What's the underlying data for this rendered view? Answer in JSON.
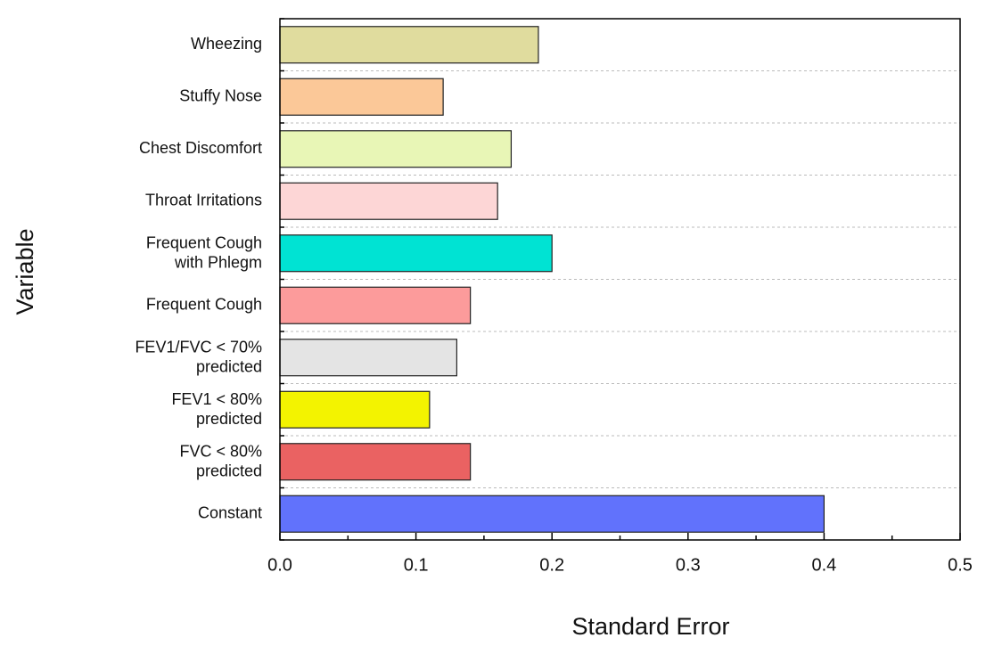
{
  "chart_data": {
    "type": "bar",
    "orientation": "horizontal",
    "x_label": "Standard Error",
    "y_label": "Variable",
    "categories": [
      "Wheezing",
      "Stuffy Nose",
      "Chest Discomfort",
      "Throat Irritations",
      "Frequent Cough\nwith Phlegm",
      "Frequent Cough",
      "FEV1/FVC < 70%\npredicted",
      "FEV1 < 80%\npredicted",
      "FVC < 80%\npredicted",
      "Constant"
    ],
    "values": [
      0.19,
      0.12,
      0.17,
      0.16,
      0.2,
      0.14,
      0.13,
      0.11,
      0.14,
      0.4
    ],
    "colors": [
      "#e0dc9e",
      "#fbc898",
      "#e8f6b6",
      "#fdd6d6",
      "#00e3d3",
      "#fc9b9b",
      "#e4e4e4",
      "#f3f300",
      "#ea6262",
      "#6172fc"
    ],
    "xlim": [
      0,
      0.5
    ],
    "xticks": [
      {
        "value": 0,
        "label": "0.0"
      },
      0.1,
      0.2,
      0.3,
      0.4,
      0.5
    ],
    "grid": true
  }
}
